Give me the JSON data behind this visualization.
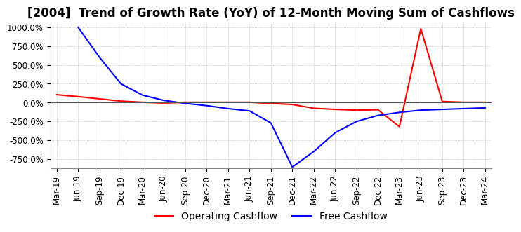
{
  "title": "[2004]  Trend of Growth Rate (YoY) of 12-Month Moving Sum of Cashflows",
  "ylim": [
    -875,
    1062.5
  ],
  "yticks": [
    -750,
    -500,
    -250,
    0,
    250,
    500,
    750,
    1000
  ],
  "yticklabels": [
    "-750.0%",
    "-500.0%",
    "-250.0%",
    "0.0%",
    "250.0%",
    "500.0%",
    "750.0%",
    "1000.0%"
  ],
  "x_labels": [
    "Mar-19",
    "Jun-19",
    "Sep-19",
    "Dec-19",
    "Mar-20",
    "Jun-20",
    "Sep-20",
    "Dec-20",
    "Mar-21",
    "Jun-21",
    "Sep-21",
    "Dec-21",
    "Mar-22",
    "Jun-22",
    "Sep-22",
    "Dec-22",
    "Mar-23",
    "Jun-23",
    "Sep-23",
    "Dec-23",
    "Mar-24"
  ],
  "operating_cashflow": [
    105,
    80,
    50,
    20,
    5,
    -5,
    5,
    5,
    5,
    5,
    -10,
    -25,
    -75,
    -90,
    -100,
    -95,
    -320,
    980,
    15,
    5,
    5
  ],
  "free_cashflow": [
    null,
    1000,
    600,
    250,
    100,
    30,
    -10,
    -40,
    -80,
    -110,
    -270,
    -855,
    -650,
    -400,
    -250,
    -170,
    -130,
    -100,
    -90,
    -80,
    -70
  ],
  "operating_color": "#FF0000",
  "free_color": "#0000FF",
  "grid_color": "#AAAAAA",
  "background_color": "#FFFFFF",
  "title_fontsize": 12,
  "legend_fontsize": 10,
  "tick_fontsize": 8.5
}
